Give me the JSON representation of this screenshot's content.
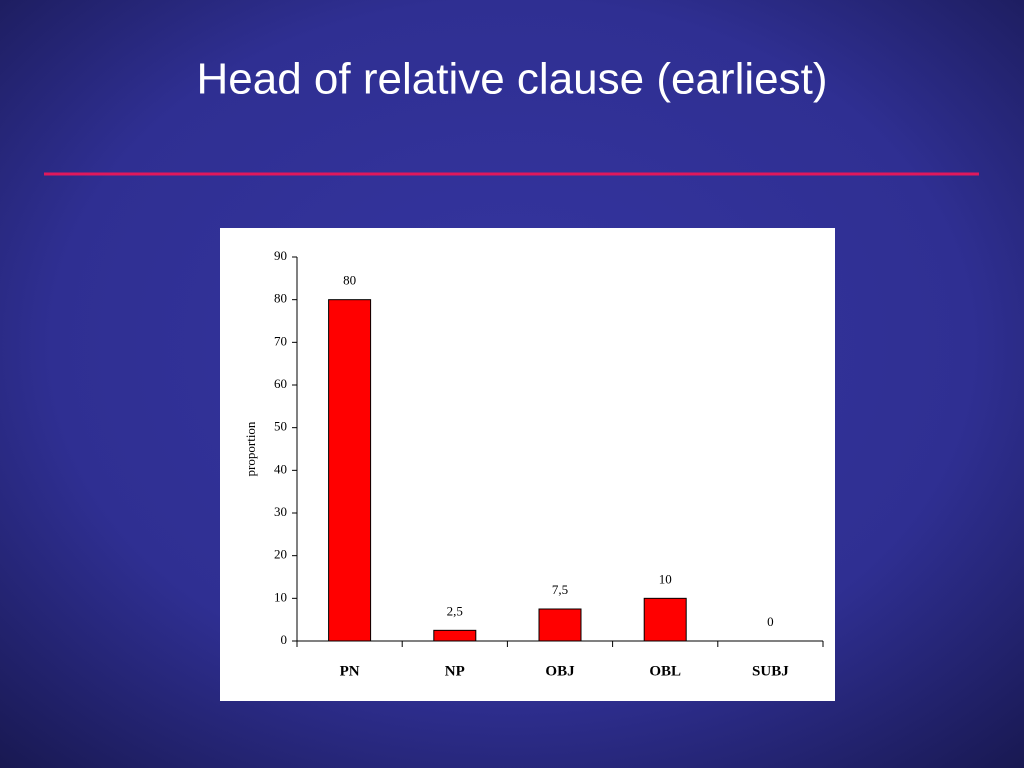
{
  "chart_data": {
    "type": "bar",
    "title": "Head of relative clause (earliest)",
    "y_label": "proportion",
    "categories": [
      "PN",
      "NP",
      "OBJ",
      "OBL",
      "SUBJ"
    ],
    "values": [
      80,
      2.5,
      7.5,
      10,
      0
    ],
    "value_labels": [
      "80",
      "2,5",
      "7,5",
      "10",
      "0"
    ],
    "color": "#ff0000",
    "ylim": [
      0,
      90
    ],
    "yticks": [
      0,
      10,
      20,
      30,
      40,
      50,
      60,
      70,
      80,
      90
    ]
  }
}
